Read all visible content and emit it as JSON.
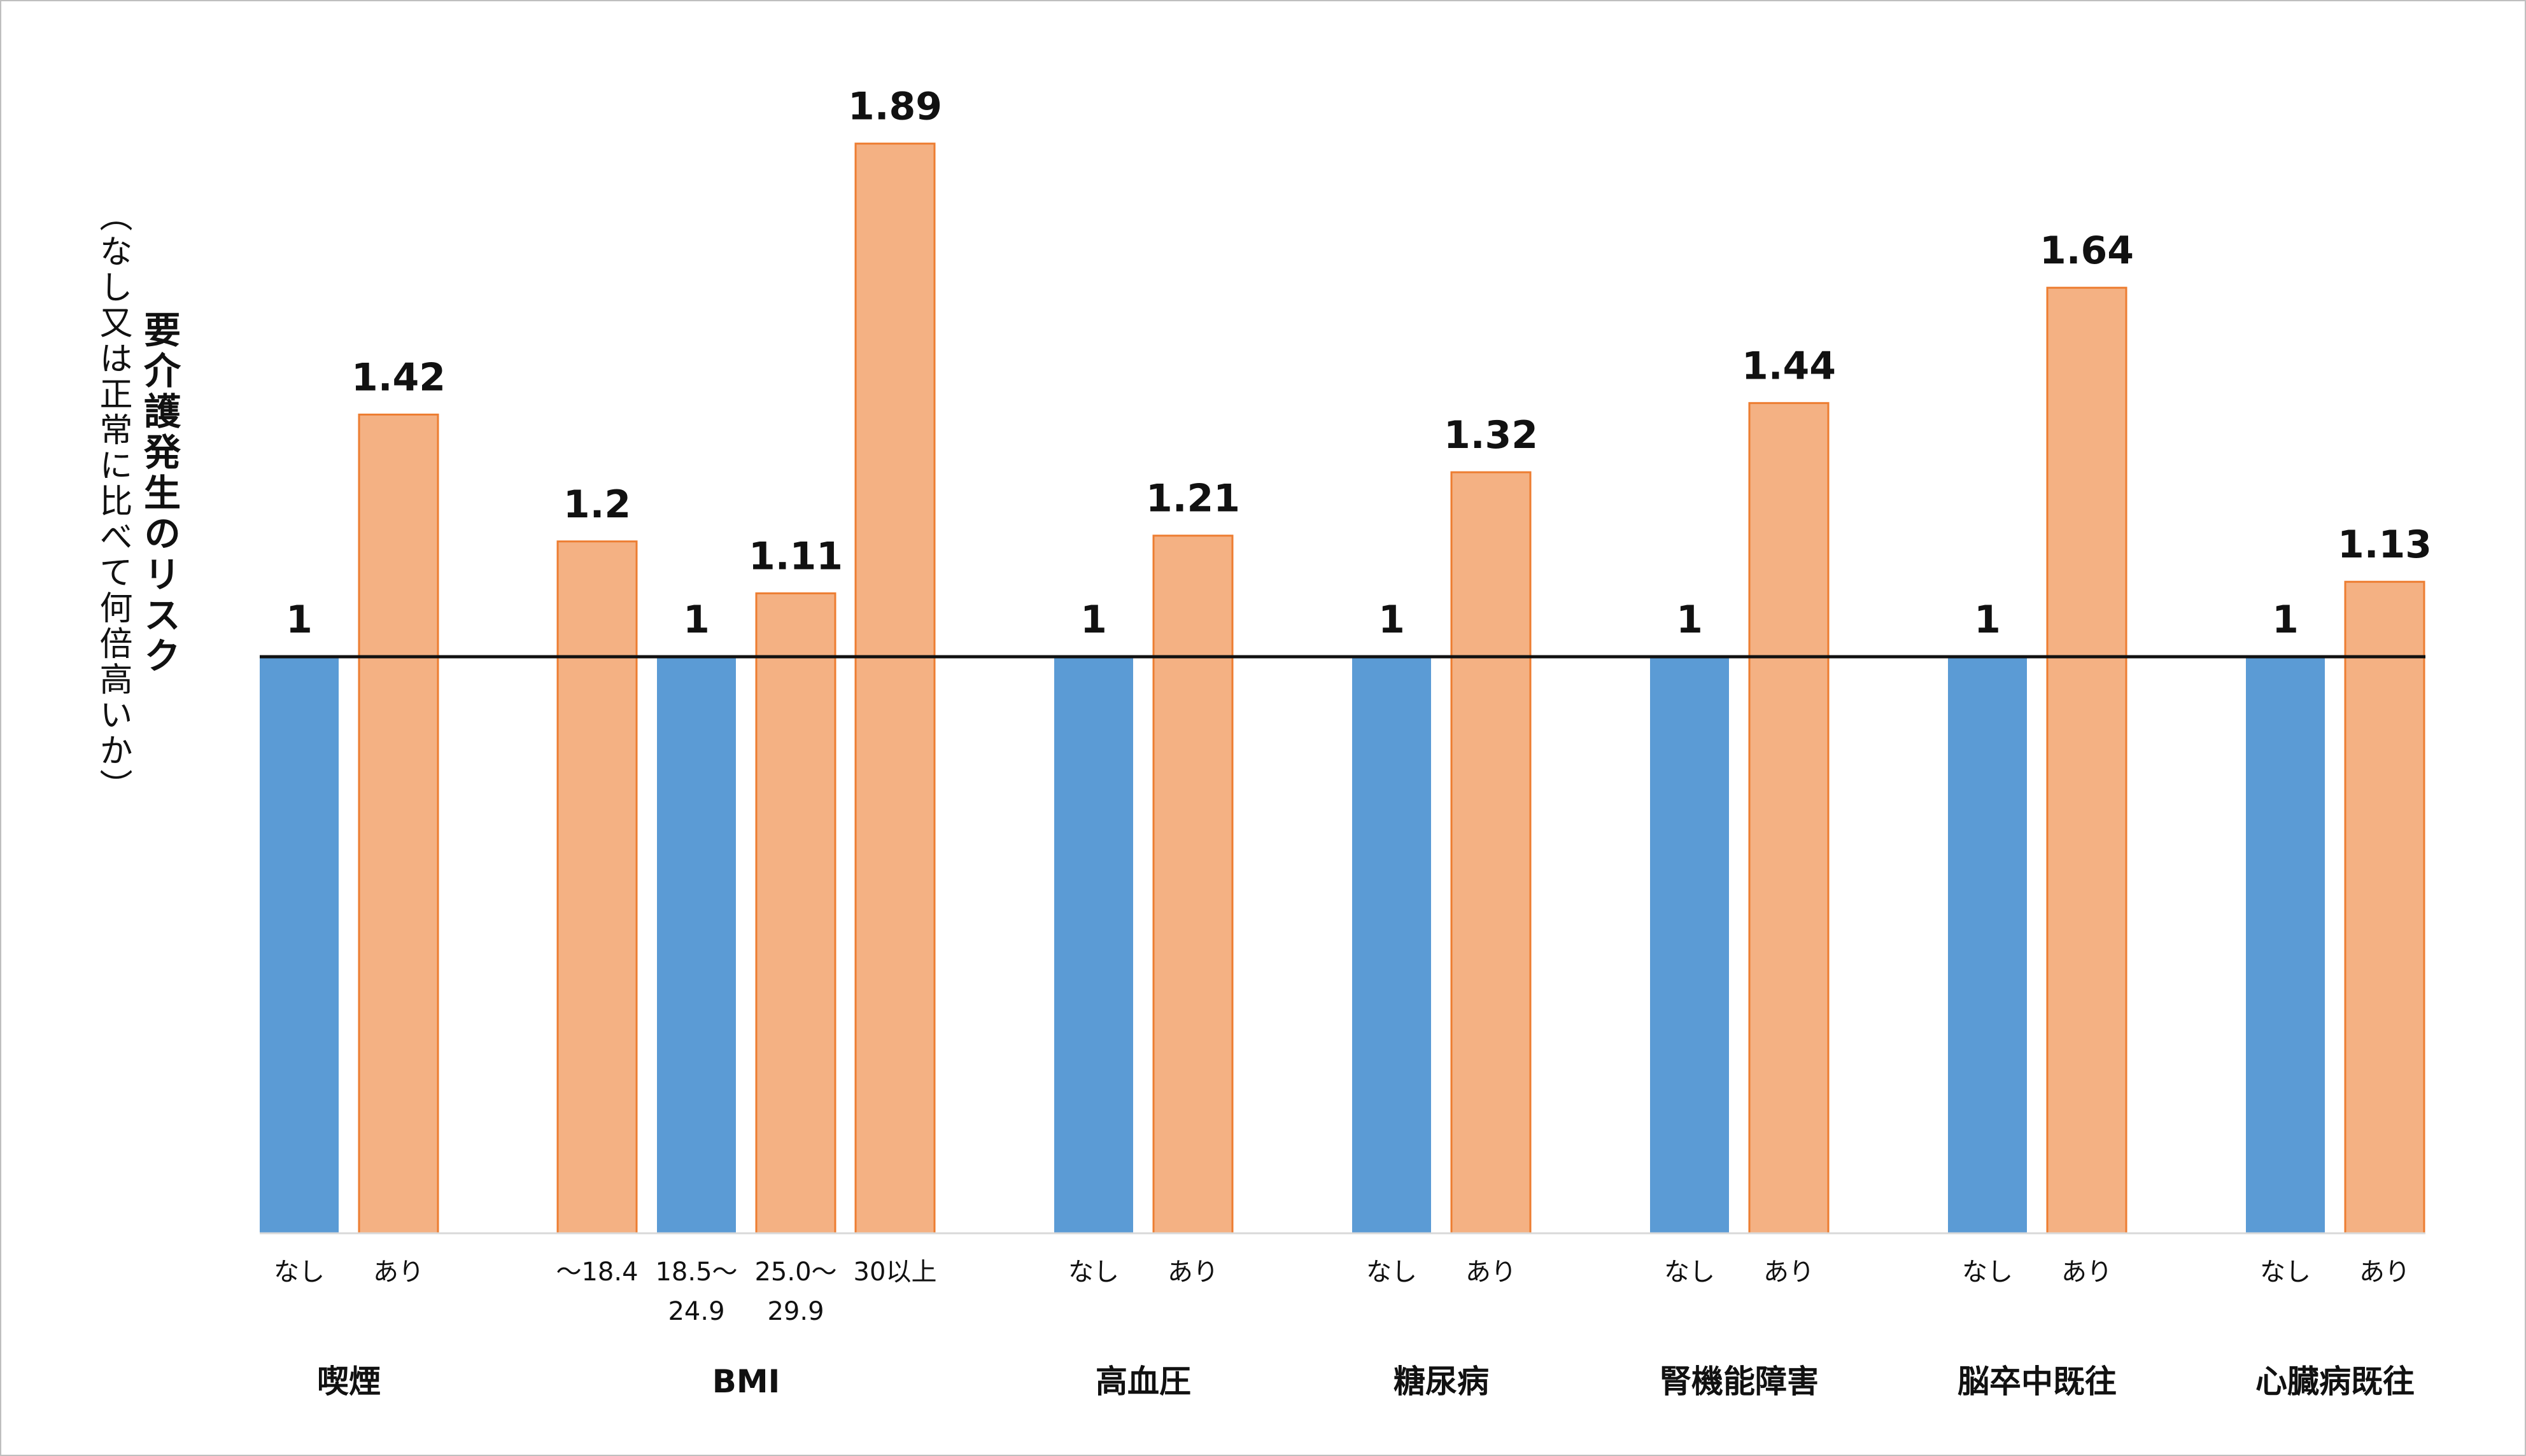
{
  "chart_data": {
    "type": "bar",
    "title": "",
    "ylabel": "要介護発生のリスク",
    "ylabel_note": "（なし又は正常に比べて何倍高いか）",
    "reference_value": 1,
    "colors": {
      "baseline": "#5b9bd5",
      "risk": "#f4b183",
      "risk_edge": "#ed7d31"
    },
    "groups": [
      {
        "name": "喫煙",
        "bars": [
          {
            "label": "なし",
            "value": 1,
            "value_label": "1"
          },
          {
            "label": "あり",
            "value": 1.42,
            "value_label": "1.42"
          }
        ]
      },
      {
        "name": "BMI",
        "bars": [
          {
            "label": "～18.4",
            "value": 1.2,
            "value_label": "1.2"
          },
          {
            "label": "18.5～\n24.9",
            "value": 1,
            "value_label": "1"
          },
          {
            "label": "25.0～\n29.9",
            "value": 1.11,
            "value_label": "1.11"
          },
          {
            "label": "30以上",
            "value": 1.89,
            "value_label": "1.89"
          }
        ]
      },
      {
        "name": "高血圧",
        "bars": [
          {
            "label": "なし",
            "value": 1,
            "value_label": "1"
          },
          {
            "label": "あり",
            "value": 1.21,
            "value_label": "1.21"
          }
        ]
      },
      {
        "name": "糖尿病",
        "bars": [
          {
            "label": "なし",
            "value": 1,
            "value_label": "1"
          },
          {
            "label": "あり",
            "value": 1.32,
            "value_label": "1.32"
          }
        ]
      },
      {
        "name": "腎機能障害",
        "bars": [
          {
            "label": "なし",
            "value": 1,
            "value_label": "1"
          },
          {
            "label": "あり",
            "value": 1.44,
            "value_label": "1.44"
          }
        ]
      },
      {
        "name": "脳卒中既往",
        "bars": [
          {
            "label": "なし",
            "value": 1,
            "value_label": "1"
          },
          {
            "label": "あり",
            "value": 1.64,
            "value_label": "1.64"
          }
        ]
      },
      {
        "name": "心臓病既往",
        "bars": [
          {
            "label": "なし",
            "value": 1,
            "value_label": "1"
          },
          {
            "label": "あり",
            "value": 1.13,
            "value_label": "1.13"
          }
        ]
      }
    ]
  }
}
